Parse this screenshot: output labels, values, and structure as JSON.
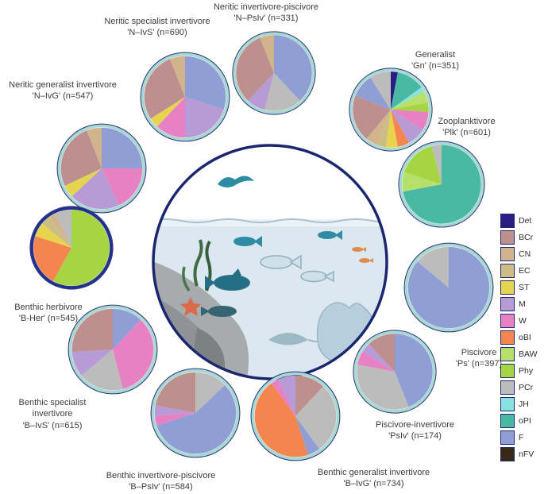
{
  "figure": {
    "description": "Diet composition pie charts for fish trophic guilds arranged around a reef-ecosystem illustration",
    "background": "#ffffff",
    "center_ring_color": "#1b2670"
  },
  "chart_data": {
    "type": "pie",
    "values_are": "estimated proportions of each diet category (read from slice angles)",
    "legend_position": "right",
    "legend_order": [
      "Det",
      "BCr",
      "CN",
      "EC",
      "ST",
      "M",
      "W",
      "oBI",
      "BAW",
      "Phy",
      "PCr",
      "JH",
      "oPI",
      "F",
      "nFV"
    ],
    "colors": {
      "Det": "#2a1d84",
      "BCr": "#bd8f8f",
      "CN": "#d2b48c",
      "EC": "#cbbd85",
      "ST": "#e6d44f",
      "M": "#b79bd6",
      "W": "#e880c4",
      "oBI": "#f5854f",
      "BAW": "#b5e06a",
      "Phy": "#a6d544",
      "PCr": "#bcbcbc",
      "JH": "#86e3e0",
      "oPI": "#49b9a4",
      "F": "#8f9fd6",
      "nFV": "#3a2817"
    },
    "pies": [
      {
        "id": "N-IvS",
        "guild": "Neritic specialist invertivore",
        "code": "N–IvS",
        "n": 690,
        "label_lines": [
          "Neritic specialist invertivore",
          "'N–IvS' (n=690)"
        ],
        "ring": "#a9d8d3",
        "slices": [
          [
            "F",
            0.3
          ],
          [
            "M",
            0.2
          ],
          [
            "W",
            0.12
          ],
          [
            "ST",
            0.04
          ],
          [
            "BCr",
            0.28
          ],
          [
            "CN",
            0.06
          ]
        ]
      },
      {
        "id": "N-PsIv",
        "guild": "Neritic invertivore-piscivore",
        "code": "N–PsIv",
        "n": 331,
        "label_lines": [
          "Neritic invertivore-piscivore",
          "'N–PsIv' (n=331)"
        ],
        "ring": "#a9d8d3",
        "slices": [
          [
            "F",
            0.38
          ],
          [
            "PCr",
            0.16
          ],
          [
            "M",
            0.08
          ],
          [
            "BCr",
            0.32
          ],
          [
            "CN",
            0.06
          ]
        ]
      },
      {
        "id": "Gn",
        "guild": "Generalist",
        "code": "Gn",
        "n": 351,
        "label_lines": [
          "Generalist",
          "'Gn' (n=351)"
        ],
        "ring": "#a9d8d3",
        "slices": [
          [
            "Det",
            0.03
          ],
          [
            "oPI",
            0.12
          ],
          [
            "JH",
            0.02
          ],
          [
            "BAW",
            0.05
          ],
          [
            "Phy",
            0.04
          ],
          [
            "W",
            0.08
          ],
          [
            "M",
            0.08
          ],
          [
            "oBI",
            0.05
          ],
          [
            "ST",
            0.05
          ],
          [
            "EC",
            0.04
          ],
          [
            "CN",
            0.05
          ],
          [
            "BCr",
            0.2
          ],
          [
            "F",
            0.1
          ],
          [
            "PCr",
            0.09
          ]
        ]
      },
      {
        "id": "N-IvG",
        "guild": "Neritic generalist invertivore",
        "code": "N–IvG",
        "n": 547,
        "label_lines": [
          "Neritic generalist invertivore",
          "'N–IvG' (n=547)"
        ],
        "ring": "#a9d8d3",
        "slices": [
          [
            "F",
            0.25
          ],
          [
            "W",
            0.18
          ],
          [
            "M",
            0.2
          ],
          [
            "ST",
            0.05
          ],
          [
            "BCr",
            0.26
          ],
          [
            "CN",
            0.06
          ]
        ]
      },
      {
        "id": "Plk",
        "guild": "Zooplanktivore",
        "code": "Plk",
        "n": 601,
        "label_lines": [
          "Zooplanktivore",
          "'Plk' (n=601)"
        ],
        "ring": "#a9d8d3",
        "slices": [
          [
            "oPI",
            0.72
          ],
          [
            "BAW",
            0.08
          ],
          [
            "Phy",
            0.16
          ],
          [
            "PCr",
            0.04
          ]
        ]
      },
      {
        "id": "B-Her",
        "guild": "Benthic herbivore",
        "code": "B-Her",
        "n": 545,
        "label_lines": [
          "Benthic herbivore",
          "'B-Her' (n=545)"
        ],
        "ring": "#23308c",
        "slices": [
          [
            "Phy",
            0.58
          ],
          [
            "oBI",
            0.22
          ],
          [
            "ST",
            0.06
          ],
          [
            "EC",
            0.04
          ],
          [
            "CN",
            0.03
          ],
          [
            "PCr",
            0.07
          ]
        ]
      },
      {
        "id": "Ps",
        "guild": "Piscivore",
        "code": "Ps",
        "n": 397,
        "label_lines": [
          "Piscivore",
          "'Ps' (n=397)"
        ],
        "ring": "#a9d8d3",
        "slices": [
          [
            "F",
            0.86
          ],
          [
            "PCr",
            0.14
          ]
        ]
      },
      {
        "id": "PsIv",
        "guild": "Piscivore-invertivore",
        "code": "PsIv",
        "n": 174,
        "label_lines": [
          "Piscivore-invertivore",
          "'PsIv' (n=174)"
        ],
        "ring": "#a9d8d3",
        "slices": [
          [
            "F",
            0.44
          ],
          [
            "PCr",
            0.34
          ],
          [
            "W",
            0.06
          ],
          [
            "M",
            0.04
          ],
          [
            "BCr",
            0.12
          ]
        ]
      },
      {
        "id": "B-IvG",
        "guild": "Benthic generalist invertivore",
        "code": "B–IvG",
        "n": 734,
        "label_lines": [
          "Benthic generalist invertivore",
          "'B–IvG' (n=734)"
        ],
        "ring": "#a9d8d3",
        "slices": [
          [
            "BCr",
            0.12
          ],
          [
            "PCr",
            0.28
          ],
          [
            "F",
            0.05
          ],
          [
            "oBI",
            0.45
          ],
          [
            "W",
            0.03
          ],
          [
            "M",
            0.07
          ]
        ]
      },
      {
        "id": "B-PsIv",
        "guild": "Benthic invertivore-piscivore",
        "code": "B–PsIv",
        "n": 584,
        "label_lines": [
          "Benthic invertivore-piscivore",
          "'B–PsIv' (n=584)"
        ],
        "ring": "#a9d8d3",
        "slices": [
          [
            "PCr",
            0.13
          ],
          [
            "F",
            0.57
          ],
          [
            "W",
            0.04
          ],
          [
            "M",
            0.04
          ],
          [
            "BCr",
            0.22
          ]
        ]
      },
      {
        "id": "B-IvS",
        "guild": "Benthic specialist invertivore",
        "code": "B–IvS",
        "n": 615,
        "label_lines": [
          "Benthic specialist",
          "invertivore",
          "'B–IvS' (n=615)"
        ],
        "ring": "#a9d8d3",
        "slices": [
          [
            "F",
            0.12
          ],
          [
            "W",
            0.34
          ],
          [
            "PCr",
            0.18
          ],
          [
            "M",
            0.1
          ],
          [
            "BCr",
            0.26
          ]
        ]
      }
    ]
  }
}
